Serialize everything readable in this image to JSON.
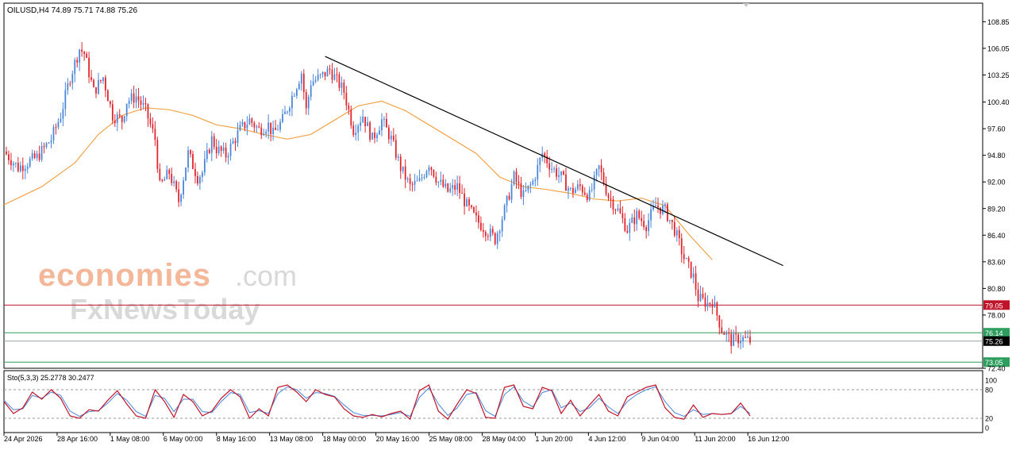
{
  "header": {
    "symbol_line": "OILUSD,H4  74.89 75.71 74.88 75.26"
  },
  "watermark": {
    "brand_top": "economies",
    "brand_top_suffix": ".com",
    "brand_bottom": "FxNewsToday"
  },
  "colors": {
    "background": "#ffffff",
    "bull": "#4a86d8",
    "bear": "#e0242c",
    "ma": "#f0a44a",
    "trendline": "#000000",
    "resistance": "#c0142a",
    "support": "#2e9e5e",
    "price_line": "#9aa0a6",
    "current_tag": "#000000",
    "sto_main": "#c0142a",
    "sto_signal": "#4a86d8",
    "watermark_top": "#f4b79a",
    "watermark_bottom": "#d9d9d9"
  },
  "chart_data": {
    "type": "candlestick",
    "symbol": "OILUSD",
    "timeframe": "H4",
    "ohlc_last": {
      "open": 74.89,
      "high": 75.71,
      "low": 74.88,
      "close": 75.26
    },
    "ylim": [
      72.4,
      110.8
    ],
    "y_ticks": [
      "108.85",
      "106.05",
      "103.25",
      "100.40",
      "97.60",
      "94.80",
      "92.00",
      "89.20",
      "86.40",
      "83.60",
      "80.80",
      "78.00",
      "72.40"
    ],
    "x_ticks": [
      "24 Apr 2026",
      "28 Apr 16:00",
      "1 May 08:00",
      "6 May 00:00",
      "8 May 16:00",
      "13 May 08:00",
      "18 May 00:00",
      "20 May 16:00",
      "25 May 08:00",
      "28 May 04:00",
      "1 Jun 20:00",
      "4 Jun 12:00",
      "9 Jun 04:00",
      "11 Jun 20:00",
      "16 Jun 12:00"
    ],
    "price_path": [
      [
        0,
        95.2
      ],
      [
        3,
        93.5
      ],
      [
        7,
        94.6
      ],
      [
        10,
        96.5
      ],
      [
        12,
        99.0
      ],
      [
        14,
        103.0
      ],
      [
        16,
        106.0
      ],
      [
        17,
        105.5
      ],
      [
        19,
        101.5
      ],
      [
        21,
        103.0
      ],
      [
        23,
        99.0
      ],
      [
        25,
        98.5
      ],
      [
        26,
        100.5
      ],
      [
        28,
        101.0
      ],
      [
        30,
        99.5
      ],
      [
        32,
        96.5
      ],
      [
        33,
        91.5
      ],
      [
        35,
        93.0
      ],
      [
        37,
        90.0
      ],
      [
        39,
        95.0
      ],
      [
        41,
        92.5
      ],
      [
        42,
        93.0
      ],
      [
        44,
        96.5
      ],
      [
        45,
        95.5
      ],
      [
        47,
        94.8
      ],
      [
        50,
        97.5
      ],
      [
        52,
        98.5
      ],
      [
        54,
        97.5
      ],
      [
        56,
        98.0
      ],
      [
        57,
        97.0
      ],
      [
        59,
        98.5
      ],
      [
        61,
        101.0
      ],
      [
        63,
        103.5
      ],
      [
        64,
        99.5
      ],
      [
        65,
        102.5
      ],
      [
        67,
        103.0
      ],
      [
        69,
        103.8
      ],
      [
        72,
        101.5
      ],
      [
        74,
        97.5
      ],
      [
        76,
        99.0
      ],
      [
        78,
        96.5
      ],
      [
        80,
        98.5
      ],
      [
        82,
        96.5
      ],
      [
        84,
        93.5
      ],
      [
        86,
        91.5
      ],
      [
        88,
        92.0
      ],
      [
        90,
        94.0
      ],
      [
        92,
        92.0
      ],
      [
        94,
        91.0
      ],
      [
        96,
        91.5
      ],
      [
        98,
        89.5
      ],
      [
        100,
        88.0
      ],
      [
        102,
        87.0
      ],
      [
        104,
        86.0
      ],
      [
        106,
        89.0
      ],
      [
        108,
        92.5
      ],
      [
        110,
        90.5
      ],
      [
        112,
        92.0
      ],
      [
        114,
        95.0
      ],
      [
        116,
        93.5
      ],
      [
        118,
        92.5
      ],
      [
        120,
        91.0
      ],
      [
        122,
        91.5
      ],
      [
        124,
        90.5
      ],
      [
        125,
        92.0
      ],
      [
        126,
        93.5
      ],
      [
        128,
        90.5
      ],
      [
        130,
        89.0
      ],
      [
        132,
        87.0
      ],
      [
        134,
        88.5
      ],
      [
        136,
        87.5
      ],
      [
        138,
        89.5
      ],
      [
        140,
        89.0
      ],
      [
        142,
        87.0
      ],
      [
        144,
        84.0
      ],
      [
        146,
        82.0
      ],
      [
        147,
        79.8
      ],
      [
        149,
        79.2
      ],
      [
        150,
        79.5
      ],
      [
        152,
        76.5
      ],
      [
        154,
        75.3
      ],
      [
        156,
        75.6
      ],
      [
        158,
        75.26
      ]
    ],
    "ma_path": [
      [
        0,
        89.6
      ],
      [
        8,
        91.5
      ],
      [
        15,
        94.0
      ],
      [
        20,
        97.0
      ],
      [
        25,
        99.0
      ],
      [
        30,
        99.8
      ],
      [
        35,
        99.6
      ],
      [
        40,
        99.0
      ],
      [
        45,
        98.0
      ],
      [
        50,
        97.6
      ],
      [
        55,
        97.0
      ],
      [
        60,
        96.5
      ],
      [
        65,
        97.0
      ],
      [
        70,
        98.5
      ],
      [
        75,
        100.0
      ],
      [
        80,
        100.5
      ],
      [
        85,
        99.5
      ],
      [
        90,
        98.0
      ],
      [
        95,
        96.5
      ],
      [
        100,
        95.0
      ],
      [
        105,
        92.5
      ],
      [
        110,
        91.5
      ],
      [
        115,
        91.2
      ],
      [
        120,
        90.8
      ],
      [
        125,
        90.2
      ],
      [
        130,
        90.0
      ],
      [
        135,
        90.3
      ],
      [
        140,
        89.5
      ],
      [
        145,
        86.5
      ],
      [
        150,
        83.8
      ]
    ],
    "trendline": [
      [
        68,
        105.2
      ],
      [
        165,
        83.2
      ]
    ],
    "horizontal_levels": [
      {
        "name": "resistance",
        "value": 79.05,
        "label": "79.05"
      },
      {
        "name": "support-upper",
        "value": 76.14,
        "label": "76.14"
      },
      {
        "name": "support-lower",
        "value": 73.05,
        "label": "73.05"
      },
      {
        "name": "current-price",
        "value": 75.26,
        "label": "75.26"
      }
    ],
    "stochastic": {
      "label": "Sto(5,3,3) 25.2778 30.2477",
      "params": "5,3,3",
      "main_last": 25.2778,
      "signal_last": 30.2477,
      "ylim": [
        0,
        100
      ],
      "y_ticks": [
        "100",
        "80",
        "20",
        "0"
      ],
      "levels": [
        80,
        20
      ],
      "main_path": [
        [
          0,
          55
        ],
        [
          2,
          30
        ],
        [
          4,
          42
        ],
        [
          6,
          75
        ],
        [
          8,
          60
        ],
        [
          10,
          80
        ],
        [
          12,
          62
        ],
        [
          14,
          25
        ],
        [
          16,
          20
        ],
        [
          18,
          38
        ],
        [
          20,
          35
        ],
        [
          22,
          58
        ],
        [
          24,
          78
        ],
        [
          26,
          50
        ],
        [
          28,
          25
        ],
        [
          30,
          20
        ],
        [
          32,
          80
        ],
        [
          34,
          55
        ],
        [
          36,
          22
        ],
        [
          38,
          70
        ],
        [
          40,
          55
        ],
        [
          42,
          25
        ],
        [
          44,
          35
        ],
        [
          46,
          62
        ],
        [
          48,
          80
        ],
        [
          50,
          65
        ],
        [
          52,
          20
        ],
        [
          54,
          40
        ],
        [
          56,
          25
        ],
        [
          58,
          85
        ],
        [
          60,
          90
        ],
        [
          62,
          75
        ],
        [
          64,
          55
        ],
        [
          66,
          80
        ],
        [
          68,
          70
        ],
        [
          70,
          65
        ],
        [
          72,
          40
        ],
        [
          74,
          25
        ],
        [
          76,
          22
        ],
        [
          78,
          28
        ],
        [
          80,
          23
        ],
        [
          82,
          30
        ],
        [
          84,
          35
        ],
        [
          86,
          18
        ],
        [
          88,
          78
        ],
        [
          90,
          90
        ],
        [
          92,
          35
        ],
        [
          94,
          18
        ],
        [
          96,
          50
        ],
        [
          98,
          80
        ],
        [
          100,
          72
        ],
        [
          102,
          22
        ],
        [
          104,
          20
        ],
        [
          106,
          85
        ],
        [
          108,
          90
        ],
        [
          110,
          45
        ],
        [
          112,
          40
        ],
        [
          114,
          85
        ],
        [
          116,
          78
        ],
        [
          118,
          30
        ],
        [
          120,
          58
        ],
        [
          122,
          25
        ],
        [
          124,
          48
        ],
        [
          126,
          70
        ],
        [
          128,
          35
        ],
        [
          130,
          25
        ],
        [
          132,
          65
        ],
        [
          134,
          75
        ],
        [
          136,
          85
        ],
        [
          138,
          90
        ],
        [
          140,
          42
        ],
        [
          142,
          22
        ],
        [
          144,
          18
        ],
        [
          146,
          48
        ],
        [
          148,
          22
        ],
        [
          150,
          30
        ],
        [
          152,
          28
        ],
        [
          154,
          30
        ],
        [
          156,
          52
        ],
        [
          158,
          25
        ]
      ],
      "signal_path": [
        [
          0,
          58
        ],
        [
          2,
          38
        ],
        [
          4,
          40
        ],
        [
          6,
          68
        ],
        [
          8,
          62
        ],
        [
          10,
          75
        ],
        [
          12,
          68
        ],
        [
          14,
          35
        ],
        [
          16,
          24
        ],
        [
          18,
          34
        ],
        [
          20,
          36
        ],
        [
          22,
          52
        ],
        [
          24,
          72
        ],
        [
          26,
          58
        ],
        [
          28,
          34
        ],
        [
          30,
          24
        ],
        [
          32,
          68
        ],
        [
          34,
          62
        ],
        [
          36,
          34
        ],
        [
          38,
          60
        ],
        [
          40,
          60
        ],
        [
          42,
          34
        ],
        [
          44,
          32
        ],
        [
          46,
          55
        ],
        [
          48,
          74
        ],
        [
          50,
          70
        ],
        [
          52,
          32
        ],
        [
          54,
          36
        ],
        [
          56,
          30
        ],
        [
          58,
          72
        ],
        [
          60,
          86
        ],
        [
          62,
          80
        ],
        [
          64,
          62
        ],
        [
          66,
          74
        ],
        [
          68,
          72
        ],
        [
          70,
          66
        ],
        [
          72,
          48
        ],
        [
          74,
          32
        ],
        [
          76,
          26
        ],
        [
          78,
          26
        ],
        [
          80,
          25
        ],
        [
          82,
          28
        ],
        [
          84,
          32
        ],
        [
          86,
          24
        ],
        [
          88,
          64
        ],
        [
          90,
          84
        ],
        [
          92,
          50
        ],
        [
          94,
          26
        ],
        [
          96,
          42
        ],
        [
          98,
          70
        ],
        [
          100,
          74
        ],
        [
          102,
          36
        ],
        [
          104,
          24
        ],
        [
          106,
          70
        ],
        [
          108,
          86
        ],
        [
          110,
          56
        ],
        [
          112,
          44
        ],
        [
          114,
          74
        ],
        [
          116,
          80
        ],
        [
          118,
          42
        ],
        [
          120,
          52
        ],
        [
          122,
          34
        ],
        [
          124,
          42
        ],
        [
          126,
          62
        ],
        [
          128,
          44
        ],
        [
          130,
          30
        ],
        [
          132,
          55
        ],
        [
          134,
          70
        ],
        [
          136,
          80
        ],
        [
          138,
          86
        ],
        [
          140,
          55
        ],
        [
          142,
          32
        ],
        [
          144,
          24
        ],
        [
          146,
          38
        ],
        [
          148,
          28
        ],
        [
          150,
          30
        ],
        [
          152,
          28
        ],
        [
          154,
          30
        ],
        [
          156,
          45
        ],
        [
          158,
          30
        ]
      ]
    }
  }
}
